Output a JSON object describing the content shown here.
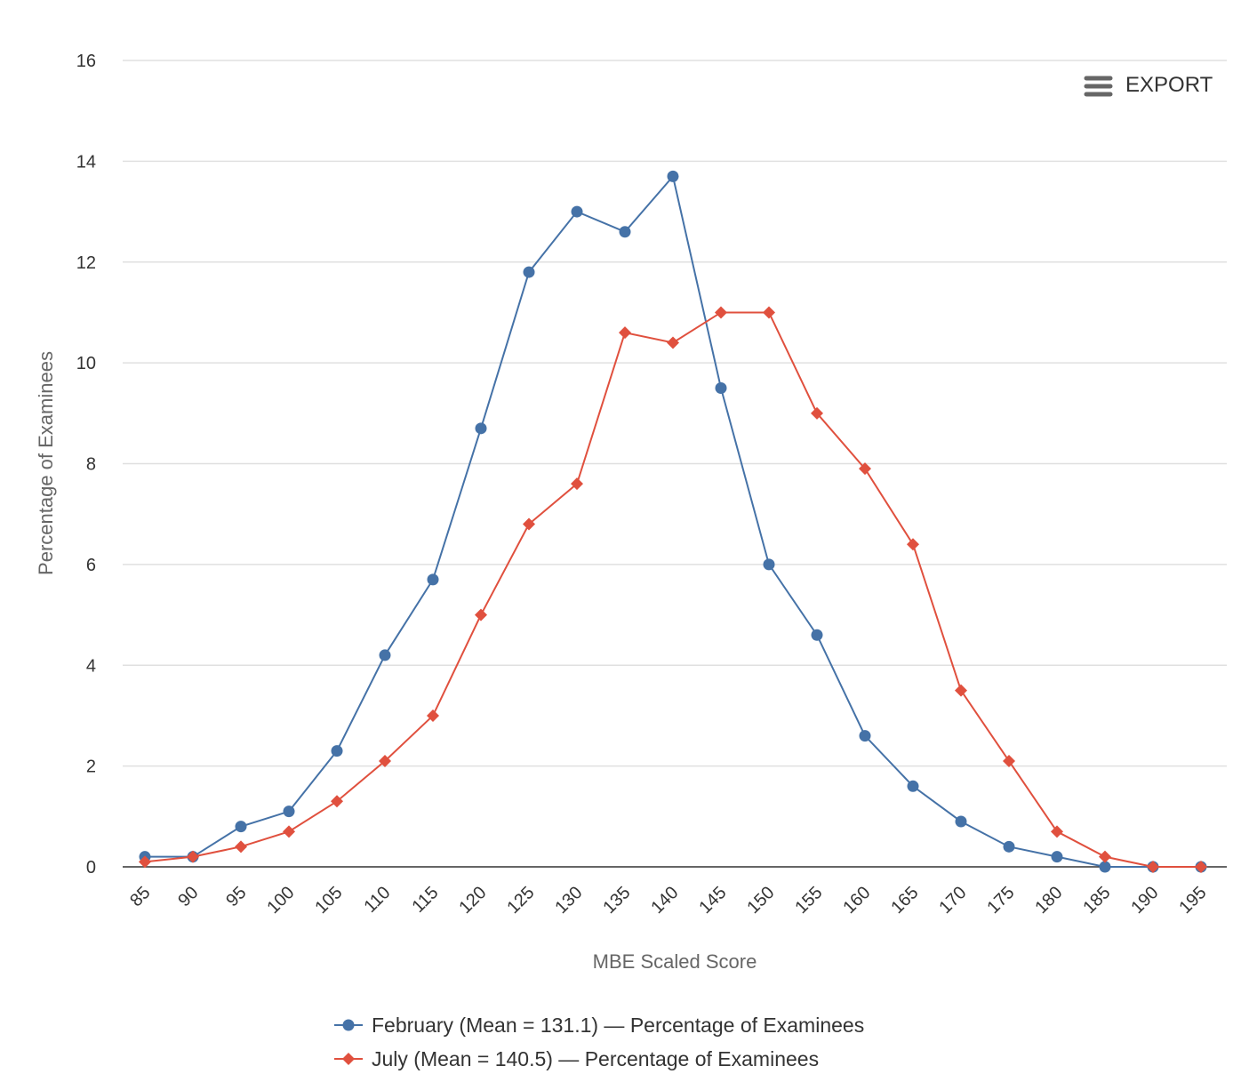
{
  "export_button": {
    "label": "EXPORT",
    "icon": "menu-icon"
  },
  "chart_data": {
    "type": "line",
    "title": "",
    "xlabel": "MBE Scaled Score",
    "ylabel": "Percentage of Examinees",
    "x": [
      85,
      90,
      95,
      100,
      105,
      110,
      115,
      120,
      125,
      130,
      135,
      140,
      145,
      150,
      155,
      160,
      165,
      170,
      175,
      180,
      185,
      190,
      195
    ],
    "x_tick_labels": [
      "85",
      "90",
      "95",
      "100",
      "105",
      "110",
      "115",
      "120",
      "125",
      "130",
      "135",
      "140",
      "145",
      "150",
      "155",
      "160",
      "165",
      "170",
      "175",
      "180",
      "185",
      "190",
      "195"
    ],
    "ylim": [
      0,
      16
    ],
    "y_ticks": [
      0,
      2,
      4,
      6,
      8,
      10,
      12,
      14,
      16
    ],
    "y_tick_labels": [
      "0",
      "2",
      "4",
      "6",
      "8",
      "10",
      "12",
      "14",
      "16"
    ],
    "grid": true,
    "legend_placement": "bottom",
    "series": [
      {
        "name": "February (Mean = 131.1) — Percentage of Examinees",
        "color": "#4572a7",
        "marker": "circle",
        "values": [
          0.2,
          0.2,
          0.8,
          1.1,
          2.3,
          4.2,
          5.7,
          8.7,
          11.8,
          13.0,
          12.6,
          13.7,
          9.5,
          6.0,
          4.6,
          2.6,
          1.6,
          0.9,
          0.4,
          0.2,
          0.0,
          0.0,
          0.0
        ]
      },
      {
        "name": "July (Mean = 140.5) — Percentage of Examinees",
        "color": "#e0503e",
        "marker": "diamond",
        "values": [
          0.1,
          0.2,
          0.4,
          0.7,
          1.3,
          2.1,
          3.0,
          5.0,
          6.8,
          7.6,
          10.6,
          10.4,
          11.0,
          11.0,
          9.0,
          7.9,
          6.4,
          3.5,
          2.1,
          0.7,
          0.2,
          0.0,
          0.0
        ]
      }
    ]
  }
}
